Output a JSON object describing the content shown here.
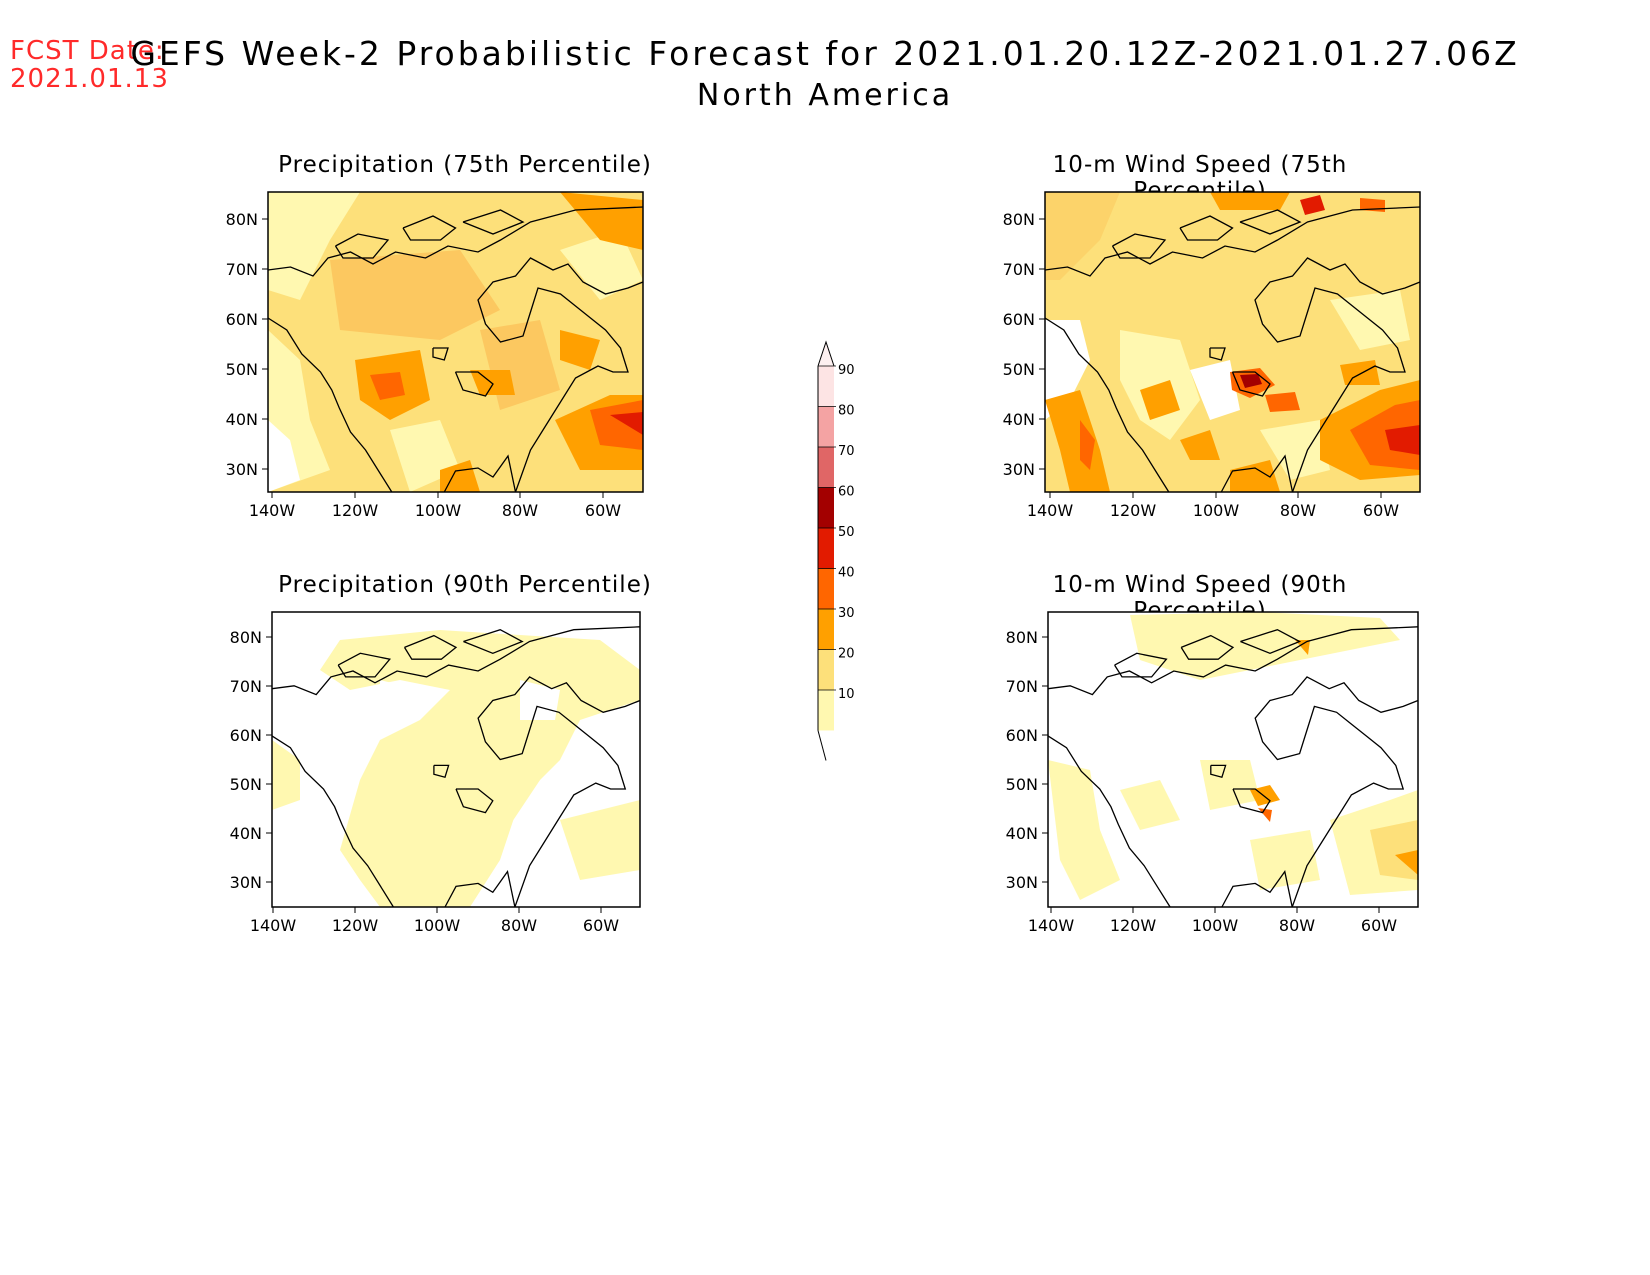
{
  "header": {
    "fcst_label": "FCST Date:",
    "fcst_date": "2021.01.13",
    "title": "GEFS Week-2 Probabilistic Forecast for 2021.01.20.12Z-2021.01.27.06Z",
    "subtitle": "North America"
  },
  "axis": {
    "lat_ticks": [
      "80N",
      "70N",
      "60N",
      "50N",
      "40N",
      "30N"
    ],
    "lon_ticks": [
      "140W",
      "120W",
      "100W",
      "80W",
      "60W"
    ]
  },
  "panels": [
    {
      "id": "precip-75",
      "title": "Precipitation (75th Percentile)"
    },
    {
      "id": "precip-90",
      "title": "Precipitation (90th Percentile)"
    },
    {
      "id": "wind-75",
      "title": "10-m Wind Speed (75th Percentile)"
    },
    {
      "id": "wind-90",
      "title": "10-m Wind Speed (90th Percentile)"
    }
  ],
  "colorbar": {
    "labels": [
      "90",
      "80",
      "70",
      "60",
      "50",
      "40",
      "30",
      "20",
      "10"
    ],
    "colors": [
      "#fde4e4",
      "#f4a3a3",
      "#e06666",
      "#a30000",
      "#e21b00",
      "#ff6600",
      "#ffa000",
      "#fde07a",
      "#fff8b0"
    ]
  },
  "palette": {
    "white": "#ffffff",
    "pale": "#fff8b0",
    "light": "#fde07a",
    "orange": "#ffa000",
    "dark_orange": "#ff6600",
    "red": "#e21b00"
  }
}
